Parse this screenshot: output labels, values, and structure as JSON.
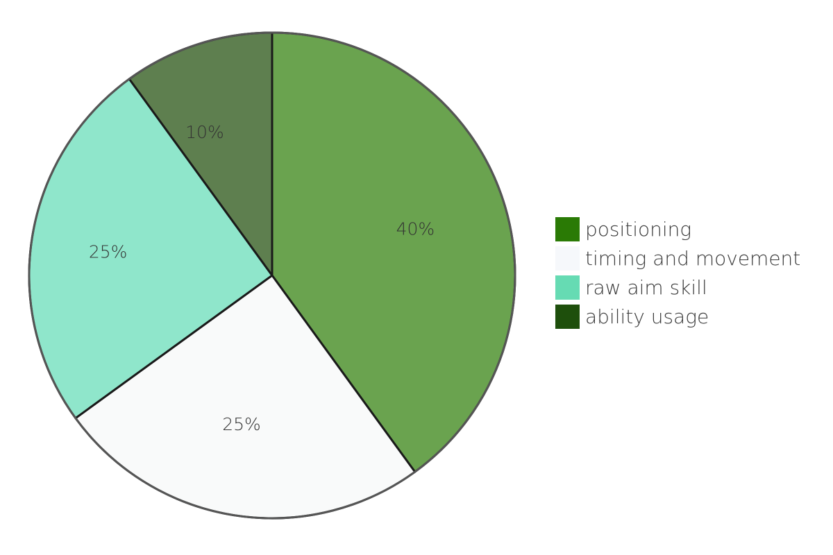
{
  "chart_data": {
    "type": "pie",
    "categories": [
      "positioning",
      "timing and movement",
      "raw aim skill",
      "ability usage"
    ],
    "values": [
      40,
      25,
      25,
      10
    ],
    "slice_labels": [
      "40%",
      "25%",
      "25%",
      "10%"
    ],
    "slice_colors": [
      "#6aa34f",
      "#f9fafa",
      "#8fe6cb",
      "#5e7f4f"
    ],
    "legend": {
      "placement": "right",
      "entries": [
        {
          "label": "positioning",
          "color": "#2a7a05"
        },
        {
          "label": "timing and movement",
          "color": "#f6f8fb"
        },
        {
          "label": "raw aim skill",
          "color": "#66dbb3"
        },
        {
          "label": "ability usage",
          "color": "#1e4f0c"
        }
      ]
    },
    "start_angle_deg": 0,
    "direction": "clockwise"
  }
}
